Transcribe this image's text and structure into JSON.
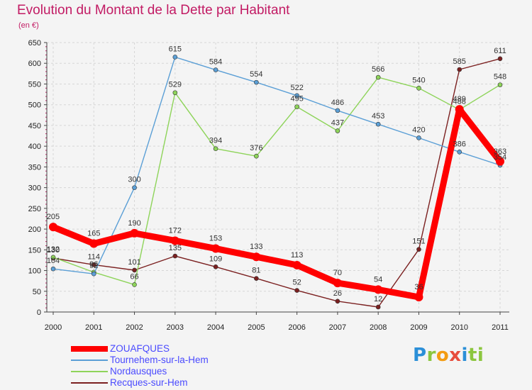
{
  "header": {
    "title": "Evolution du Montant de la Dette par Habitant",
    "subtitle": "(en €)"
  },
  "logo": {
    "text": "Proxiti",
    "letters": [
      "P",
      "r",
      "o",
      "x",
      "i",
      "ti"
    ]
  },
  "chart_data": {
    "type": "line",
    "title": "Evolution du Montant de la Dette par Habitant",
    "subtitle": "(en €)",
    "x": [
      "2000",
      "2001",
      "2002",
      "2003",
      "2004",
      "2005",
      "2006",
      "2007",
      "2008",
      "2009",
      "2010",
      "2011"
    ],
    "ylim": [
      0,
      650
    ],
    "yticks": [
      "0",
      "50",
      "100",
      "150",
      "200",
      "250",
      "300",
      "350",
      "400",
      "450",
      "500",
      "550",
      "600",
      "650"
    ],
    "grid": true,
    "legend_position": "bottom-left",
    "series": [
      {
        "name": "Recques-sur-Hem",
        "color": "#7b2020",
        "values": [
          130,
          114,
          101,
          135,
          109,
          81,
          52,
          26,
          12,
          151,
          585,
          611
        ],
        "labels": [
          "130",
          "114",
          "101",
          "135",
          "109",
          "81",
          "52",
          "26",
          "12",
          "151",
          "585",
          "611"
        ]
      },
      {
        "name": "Nordausques",
        "color": "#8ed45a",
        "values": [
          132,
          96,
          66,
          529,
          394,
          376,
          495,
          437,
          566,
          540,
          488,
          548
        ],
        "labels": [
          "132",
          "96",
          "66",
          "529",
          "394",
          "376",
          "495",
          "437",
          "566",
          "540",
          "488",
          "548"
        ]
      },
      {
        "name": "Tournehem-sur-la-Hem",
        "color": "#5b9fd6",
        "values": [
          104,
          92,
          300,
          615,
          584,
          554,
          522,
          486,
          453,
          420,
          386,
          354
        ],
        "labels": [
          "104",
          "92",
          "300",
          "615",
          "584",
          "554",
          "522",
          "486",
          "453",
          "420",
          "386",
          "354"
        ]
      },
      {
        "name": "ZOUAFQUES",
        "color": "#ff0000",
        "values": [
          205,
          165,
          190,
          172,
          153,
          133,
          113,
          70,
          54,
          36,
          489,
          363
        ],
        "labels": [
          "205",
          "165",
          "190",
          "172",
          "153",
          "133",
          "113",
          "70",
          "54",
          "36",
          "489",
          "363"
        ]
      }
    ]
  },
  "legend": {
    "items": [
      {
        "name": "ZOUAFQUES",
        "color": "#ff0000"
      },
      {
        "name": "Tournehem-sur-la-Hem",
        "color": "#5b9fd6"
      },
      {
        "name": "Nordausques",
        "color": "#8ed45a"
      },
      {
        "name": "Recques-sur-Hem",
        "color": "#7b2020"
      }
    ],
    "text_color": "#4a4aff"
  }
}
